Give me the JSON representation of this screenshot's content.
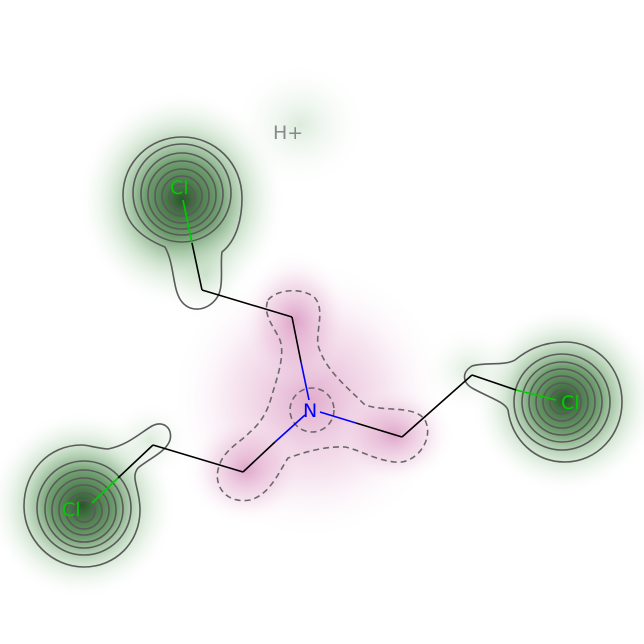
{
  "molecule": {
    "charge_label": "H+",
    "atoms": [
      {
        "id": "cl1",
        "symbol": "Cl",
        "color": "#00cc00"
      },
      {
        "id": "cl2",
        "symbol": "Cl",
        "color": "#00cc00"
      },
      {
        "id": "cl3",
        "symbol": "Cl",
        "color": "#00cc00"
      },
      {
        "id": "n",
        "symbol": "N",
        "color": "#0000ff"
      }
    ]
  },
  "colors": {
    "bond_carbon": "#000000",
    "bond_nitrogen": "#0000ff",
    "bond_chlorine": "#00cc00",
    "positive_contour": "#555555",
    "negative_contour": "#666666",
    "positive_fill": "#2f6b2f",
    "negative_fill": "#c05a9a",
    "charge_text": "#888888"
  }
}
